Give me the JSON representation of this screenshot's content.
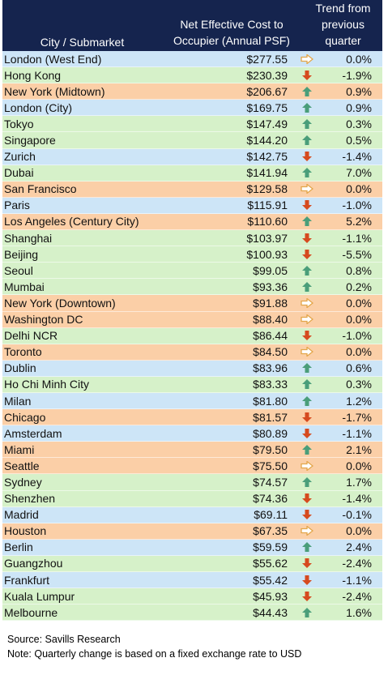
{
  "header": {
    "city": "City / Submarket",
    "cost_line1": "Net Effective Cost to",
    "cost_line2": "Occupier (Annual PSF)",
    "trend_line1": "Trend from",
    "trend_line2": "previous",
    "trend_line3": "quarter"
  },
  "colors": {
    "header_bg": "#15244e",
    "row_blue": "#cde5f7",
    "row_green": "#d6f1c9",
    "row_orange": "#fbcfa7",
    "arrow_up": "#4a9e7a",
    "arrow_down": "#d64a1f",
    "arrow_flat": "#e3a64a"
  },
  "chart_data": {
    "type": "table",
    "columns": [
      "City / Submarket",
      "Net Effective Cost to Occupier (Annual PSF)",
      "Trend from previous quarter"
    ],
    "rows": [
      {
        "city": "London (West End)",
        "cost": "$277.55",
        "trend": "flat",
        "change": "0.0%",
        "band": "blue"
      },
      {
        "city": "Hong Kong",
        "cost": "$230.39",
        "trend": "down",
        "change": "-1.9%",
        "band": "green"
      },
      {
        "city": "New York (Midtown)",
        "cost": "$206.67",
        "trend": "up",
        "change": "0.9%",
        "band": "orange"
      },
      {
        "city": "London (City)",
        "cost": "$169.75",
        "trend": "up",
        "change": "0.9%",
        "band": "blue"
      },
      {
        "city": "Tokyo",
        "cost": "$147.49",
        "trend": "up",
        "change": "0.3%",
        "band": "green"
      },
      {
        "city": "Singapore",
        "cost": "$144.20",
        "trend": "up",
        "change": "0.5%",
        "band": "green"
      },
      {
        "city": "Zurich",
        "cost": "$142.75",
        "trend": "down",
        "change": "-1.4%",
        "band": "blue"
      },
      {
        "city": "Dubai",
        "cost": "$141.94",
        "trend": "up",
        "change": "7.0%",
        "band": "green"
      },
      {
        "city": "San Francisco",
        "cost": "$129.58",
        "trend": "flat",
        "change": "0.0%",
        "band": "orange"
      },
      {
        "city": "Paris",
        "cost": "$115.91",
        "trend": "down",
        "change": "-1.0%",
        "band": "blue"
      },
      {
        "city": "Los Angeles (Century City)",
        "cost": "$110.60",
        "trend": "up",
        "change": "5.2%",
        "band": "orange"
      },
      {
        "city": "Shanghai",
        "cost": "$103.97",
        "trend": "down",
        "change": "-1.1%",
        "band": "green"
      },
      {
        "city": "Beijing",
        "cost": "$100.93",
        "trend": "down",
        "change": "-5.5%",
        "band": "green"
      },
      {
        "city": "Seoul",
        "cost": "$99.05",
        "trend": "up",
        "change": "0.8%",
        "band": "green"
      },
      {
        "city": "Mumbai",
        "cost": "$93.36",
        "trend": "up",
        "change": "0.2%",
        "band": "green"
      },
      {
        "city": "New York (Downtown)",
        "cost": "$91.88",
        "trend": "flat",
        "change": "0.0%",
        "band": "orange"
      },
      {
        "city": "Washington DC",
        "cost": "$88.40",
        "trend": "flat",
        "change": "0.0%",
        "band": "orange"
      },
      {
        "city": "Delhi NCR",
        "cost": "$86.44",
        "trend": "down",
        "change": "-1.0%",
        "band": "green"
      },
      {
        "city": "Toronto",
        "cost": "$84.50",
        "trend": "flat",
        "change": "0.0%",
        "band": "orange"
      },
      {
        "city": "Dublin",
        "cost": "$83.96",
        "trend": "up",
        "change": "0.6%",
        "band": "blue"
      },
      {
        "city": "Ho Chi Minh City",
        "cost": "$83.33",
        "trend": "up",
        "change": "0.3%",
        "band": "green"
      },
      {
        "city": "Milan",
        "cost": "$81.80",
        "trend": "up",
        "change": "1.2%",
        "band": "blue"
      },
      {
        "city": "Chicago",
        "cost": "$81.57",
        "trend": "down",
        "change": "-1.7%",
        "band": "orange"
      },
      {
        "city": "Amsterdam",
        "cost": "$80.89",
        "trend": "down",
        "change": "-1.1%",
        "band": "blue"
      },
      {
        "city": "Miami",
        "cost": "$79.50",
        "trend": "up",
        "change": "2.1%",
        "band": "orange"
      },
      {
        "city": "Seattle",
        "cost": "$75.50",
        "trend": "flat",
        "change": "0.0%",
        "band": "orange"
      },
      {
        "city": "Sydney",
        "cost": "$74.57",
        "trend": "up",
        "change": "1.7%",
        "band": "green"
      },
      {
        "city": "Shenzhen",
        "cost": "$74.36",
        "trend": "down",
        "change": "-1.4%",
        "band": "green"
      },
      {
        "city": "Madrid",
        "cost": "$69.11",
        "trend": "down",
        "change": "-0.1%",
        "band": "blue"
      },
      {
        "city": "Houston",
        "cost": "$67.35",
        "trend": "flat",
        "change": "0.0%",
        "band": "orange"
      },
      {
        "city": "Berlin",
        "cost": "$59.59",
        "trend": "up",
        "change": "2.4%",
        "band": "blue"
      },
      {
        "city": "Guangzhou",
        "cost": "$55.62",
        "trend": "down",
        "change": "-2.4%",
        "band": "green"
      },
      {
        "city": "Frankfurt",
        "cost": "$55.42",
        "trend": "down",
        "change": "-1.1%",
        "band": "blue"
      },
      {
        "city": "Kuala Lumpur",
        "cost": "$45.93",
        "trend": "down",
        "change": "-2.4%",
        "band": "green"
      },
      {
        "city": "Melbourne",
        "cost": "$44.43",
        "trend": "up",
        "change": "1.6%",
        "band": "green"
      }
    ]
  },
  "notes": {
    "source": "Source: Savills Research",
    "note": "Note: Quarterly change is based on a fixed exchange rate to USD"
  }
}
